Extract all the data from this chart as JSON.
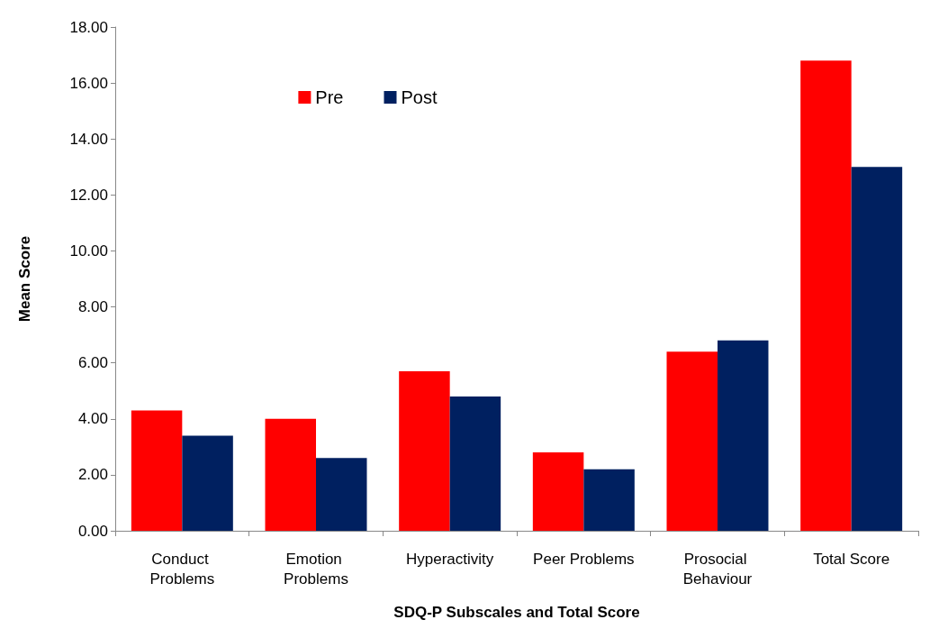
{
  "chart_data": {
    "type": "bar",
    "xlabel": "SDQ-P Subscales and Total Score",
    "ylabel": "Mean Score",
    "categories": [
      "Conduct Problems",
      "Emotion Problems",
      "Hyperactivity",
      "Peer Problems",
      "Prosocial Behaviour",
      "Total Score"
    ],
    "series": [
      {
        "name": "Pre",
        "color": "#ff0000",
        "values": [
          4.3,
          4.0,
          5.7,
          2.8,
          6.4,
          16.8
        ]
      },
      {
        "name": "Post",
        "color": "#002060",
        "values": [
          3.4,
          2.6,
          4.8,
          2.2,
          6.8,
          13.0
        ]
      }
    ],
    "ylim": [
      0,
      18
    ],
    "yticks": [
      {
        "value": 0,
        "label": "0.00"
      },
      {
        "value": 2,
        "label": "2.00"
      },
      {
        "value": 4,
        "label": "4.00"
      },
      {
        "value": 6,
        "label": "6.00"
      },
      {
        "value": 8,
        "label": "8.00"
      },
      {
        "value": 10,
        "label": "10.00"
      },
      {
        "value": 12,
        "label": "12.00"
      },
      {
        "value": 14,
        "label": "14.00"
      },
      {
        "value": 16,
        "label": "16.00"
      },
      {
        "value": 18,
        "label": "18.00"
      }
    ],
    "grid": false,
    "legend": "top left"
  }
}
